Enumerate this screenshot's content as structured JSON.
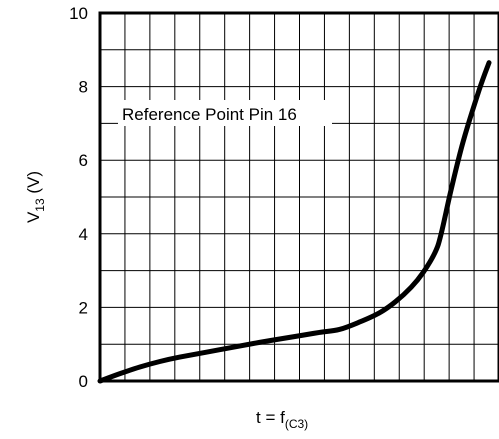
{
  "chart_data": {
    "type": "line",
    "title": "",
    "annotation": "Reference Point Pin 16",
    "xlabel": {
      "main": "t = f",
      "sub": "(C3)"
    },
    "ylabel": {
      "main": "V",
      "sub": "13",
      "suffix": " (V)"
    },
    "ylim": [
      0,
      10
    ],
    "yticks": [
      0,
      2,
      4,
      6,
      8,
      10
    ],
    "xlim": [
      0,
      1
    ],
    "x_tick_labels_shown": false,
    "grid": {
      "x_divisions": 16,
      "y_divisions": 10
    },
    "legend": "none",
    "series": [
      {
        "x": [
          0,
          0.05,
          0.1,
          0.15,
          0.2,
          0.3,
          0.4,
          0.5,
          0.55,
          0.6,
          0.65,
          0.7,
          0.74,
          0.78,
          0.81,
          0.84,
          0.855,
          0.88,
          0.91,
          0.95,
          0.975
        ],
        "y": [
          0,
          0.2,
          0.38,
          0.53,
          0.65,
          0.85,
          1.05,
          1.23,
          1.32,
          1.4,
          1.6,
          1.85,
          2.15,
          2.55,
          2.95,
          3.5,
          4.0,
          5.2,
          6.5,
          7.9,
          8.65
        ]
      }
    ],
    "colors": {
      "line": "#000000",
      "grid": "#000000",
      "background": "#ffffff"
    }
  }
}
